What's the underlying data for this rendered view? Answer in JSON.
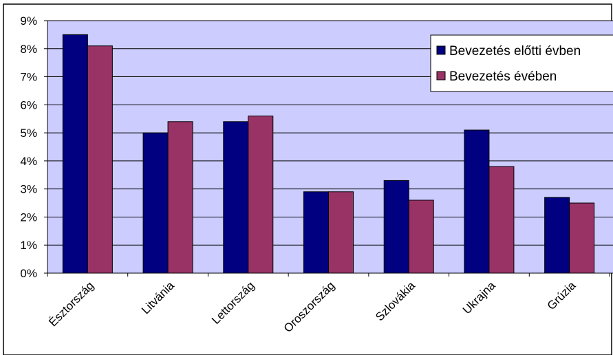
{
  "chart_data": {
    "type": "bar",
    "categories": [
      "Észtország",
      "Litvánia",
      "Lettország",
      "Oroszország",
      "Szlovákia",
      "Ukrajna",
      "Grúzia"
    ],
    "series": [
      {
        "name": "Bevezetés előtti évben",
        "color": "#000080",
        "values": [
          8.5,
          5.0,
          5.4,
          2.9,
          3.3,
          5.1,
          2.7
        ]
      },
      {
        "name": "Bevezetés évében",
        "color": "#993366",
        "values": [
          8.1,
          5.4,
          5.6,
          2.9,
          2.6,
          3.8,
          2.5
        ]
      }
    ],
    "y_ticks": [
      "0%",
      "1%",
      "2%",
      "3%",
      "4%",
      "5%",
      "6%",
      "7%",
      "8%",
      "9%"
    ],
    "ylim": [
      0,
      9
    ],
    "y_unit": "%",
    "grid": true,
    "legend_position": "top-right",
    "plot_background": "#ccccff"
  }
}
